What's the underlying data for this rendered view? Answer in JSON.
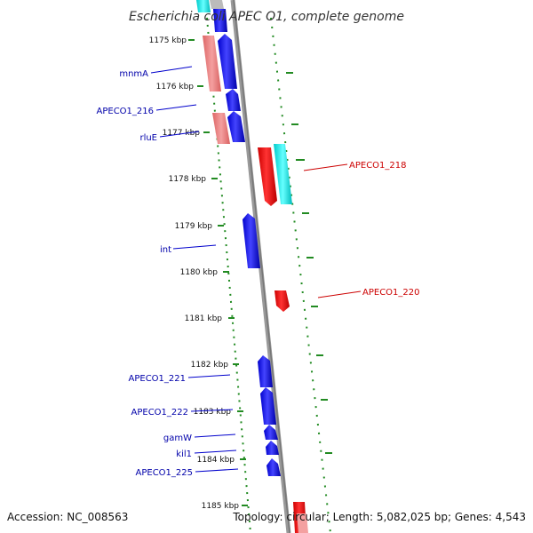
{
  "title": "Escherichia coli APEC O1, complete genome",
  "footer": {
    "accession": "Accession: NC_008563",
    "topology": "Topology: circular; Length: 5,082,025 bp; Genes: 4,543"
  },
  "ticks": [
    "1175 kbp",
    "1176 kbp",
    "1177 kbp",
    "1178 kbp",
    "1179 kbp",
    "1180 kbp",
    "1181 kbp",
    "1182 kbp",
    "1183 kbp",
    "1184 kbp",
    "1185 kbp"
  ],
  "gene_labels_left": [
    "mnmA",
    "APECO1_216",
    "rluE",
    "int",
    "APECO1_221",
    "APECO1_222",
    "gamW",
    "kil1",
    "APECO1_225"
  ],
  "gene_labels_right": [
    "APECO1_218",
    "APECO1_220"
  ],
  "colors": {
    "forward_cds": "#0000ee",
    "reverse_cds": "#ee0000",
    "forward_rna": "#e88080",
    "reverse_rna": "#00dddd",
    "backbone": "#999999",
    "label_blue": "#0000aa",
    "label_red": "#cc0000",
    "gc_dots": "#228b22"
  }
}
